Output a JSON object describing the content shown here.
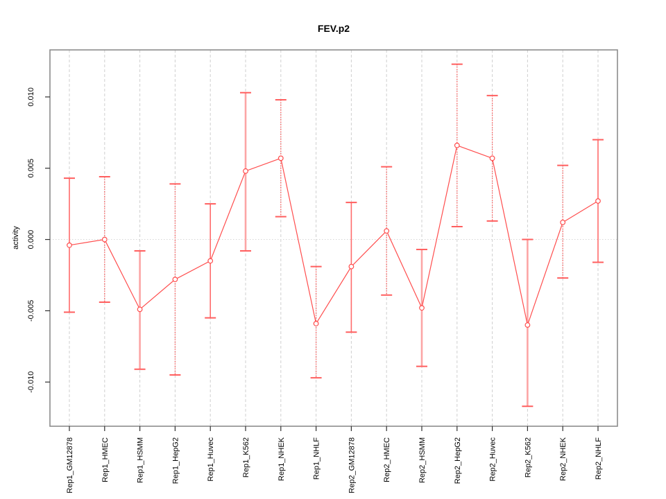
{
  "chart_data": {
    "type": "line",
    "title": "FEV.p2",
    "xlabel": "",
    "ylabel": "activity",
    "legend": "none",
    "grid": "vertical dashed gridline per category; dotted horizontal line at y=0",
    "ylim": [
      -0.0131,
      0.0133
    ],
    "yticks": [
      -0.01,
      -0.005,
      0.0,
      0.005,
      0.01
    ],
    "ytick_labels": [
      "-0.010",
      "-0.005",
      "0.000",
      "0.005",
      "0.010"
    ],
    "categories": [
      "Rep1_GM12878",
      "Rep1_HMEC",
      "Rep1_HSMM",
      "Rep1_HepG2",
      "Rep1_Huvec",
      "Rep1_K562",
      "Rep1_NHEK",
      "Rep1_NHLF",
      "Rep2_GM12878",
      "Rep2_HMEC",
      "Rep2_HSMM",
      "Rep2_HepG2",
      "Rep2_Huvec",
      "Rep2_K562",
      "Rep2_NHEK",
      "Rep2_NHLF"
    ],
    "values": [
      -0.0004,
      0.0,
      -0.0049,
      -0.0028,
      -0.0015,
      0.0048,
      0.0057,
      -0.0059,
      -0.0019,
      0.0006,
      -0.0048,
      0.0066,
      0.0057,
      -0.006,
      0.0012,
      0.0027
    ],
    "error_low": [
      -0.0051,
      -0.0044,
      -0.0091,
      -0.0095,
      -0.0055,
      -0.0008,
      0.0016,
      -0.0097,
      -0.0065,
      -0.0039,
      -0.0089,
      0.0009,
      0.0013,
      -0.0117,
      -0.0027,
      -0.0016
    ],
    "error_high": [
      0.0043,
      0.0044,
      -0.0008,
      0.0039,
      0.0025,
      0.0103,
      0.0098,
      -0.0019,
      0.0026,
      0.0051,
      -0.0007,
      0.0123,
      0.0101,
      0.0,
      0.0052,
      0.007
    ],
    "error_bar_styles": [
      "solid",
      "dotted",
      "thick",
      "dotted",
      "solid",
      "thick",
      "dotted",
      "dotted",
      "solid",
      "dotted",
      "thick",
      "dotted",
      "dotted",
      "thick",
      "dotted",
      "solid"
    ],
    "colors": {
      "series_red": "#FF4D4D",
      "cap_red": "#FF5E5E",
      "bar_pink": "#FCA5A5",
      "grid_gray": "#CFCFCF",
      "zero_line_gray": "#D6D6D6",
      "box_border_gray": "#8C8C8C",
      "tick_black": "#2E2E2E"
    }
  }
}
